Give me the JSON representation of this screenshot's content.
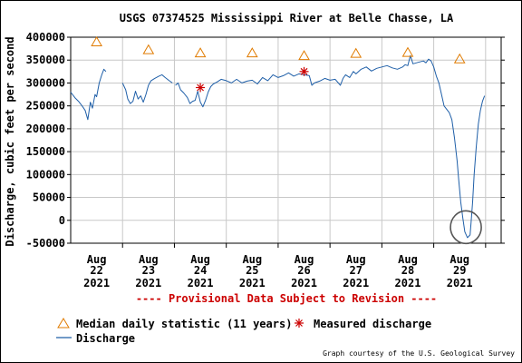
{
  "chart_data": {
    "type": "line",
    "title": "USGS 07374525 Mississippi River at Belle Chasse, LA",
    "ylabel": "Discharge, cubic feet per second",
    "ylim": [
      -50000,
      400000
    ],
    "yticks": [
      "400000",
      "350000",
      "300000",
      "250000",
      "200000",
      "150000",
      "100000",
      "50000",
      "0",
      "-50000"
    ],
    "ytick_values": [
      400000,
      350000,
      300000,
      250000,
      200000,
      150000,
      100000,
      50000,
      0,
      -50000
    ],
    "xlim": [
      0,
      8.3
    ],
    "xticks": [
      {
        "month": "Aug",
        "day": "22",
        "year": "2021",
        "value": 0.5
      },
      {
        "month": "Aug",
        "day": "23",
        "year": "2021",
        "value": 1.5
      },
      {
        "month": "Aug",
        "day": "24",
        "year": "2021",
        "value": 2.5
      },
      {
        "month": "Aug",
        "day": "25",
        "year": "2021",
        "value": 3.5
      },
      {
        "month": "Aug",
        "day": "26",
        "year": "2021",
        "value": 4.5
      },
      {
        "month": "Aug",
        "day": "27",
        "year": "2021",
        "value": 5.5
      },
      {
        "month": "Aug",
        "day": "28",
        "year": "2021",
        "value": 6.5
      },
      {
        "month": "Aug",
        "day": "29",
        "year": "2021",
        "value": 7.5
      }
    ],
    "day_boundaries": [
      1,
      2,
      3,
      4,
      5,
      6,
      7,
      8
    ],
    "grid": true,
    "provisional_note": "---- Provisional Data Subject to Revision ----",
    "credit": "Graph courtesy of the U.S. Geological Survey",
    "series": [
      {
        "name": "Discharge",
        "color": "#1f5fa8",
        "segments": [
          [
            [
              0.0,
              280000
            ],
            [
              0.08,
              268000
            ],
            [
              0.15,
              260000
            ],
            [
              0.22,
              250000
            ],
            [
              0.28,
              240000
            ],
            [
              0.33,
              220000
            ],
            [
              0.38,
              258000
            ],
            [
              0.42,
              245000
            ],
            [
              0.47,
              275000
            ],
            [
              0.5,
              270000
            ],
            [
              0.55,
              300000
            ],
            [
              0.6,
              318000
            ],
            [
              0.64,
              330000
            ],
            [
              0.68,
              325000
            ]
          ],
          [
            [
              1.0,
              300000
            ],
            [
              1.06,
              285000
            ],
            [
              1.1,
              265000
            ],
            [
              1.15,
              255000
            ],
            [
              1.2,
              260000
            ],
            [
              1.25,
              282000
            ],
            [
              1.3,
              265000
            ],
            [
              1.35,
              272000
            ],
            [
              1.4,
              258000
            ],
            [
              1.45,
              275000
            ],
            [
              1.5,
              295000
            ],
            [
              1.55,
              305000
            ],
            [
              1.62,
              310000
            ],
            [
              1.7,
              315000
            ],
            [
              1.76,
              318000
            ],
            [
              1.82,
              312000
            ],
            [
              1.9,
              305000
            ],
            [
              1.96,
              300000
            ]
          ],
          [
            [
              2.02,
              295000
            ],
            [
              2.07,
              300000
            ],
            [
              2.12,
              285000
            ],
            [
              2.18,
              278000
            ],
            [
              2.25,
              268000
            ],
            [
              2.3,
              255000
            ],
            [
              2.35,
              260000
            ],
            [
              2.4,
              262000
            ],
            [
              2.45,
              282000
            ],
            [
              2.5,
              258000
            ],
            [
              2.55,
              248000
            ],
            [
              2.6,
              262000
            ],
            [
              2.65,
              280000
            ],
            [
              2.7,
              292000
            ],
            [
              2.75,
              298000
            ],
            [
              2.82,
              302000
            ],
            [
              2.9,
              308000
            ],
            [
              3.0,
              305000
            ],
            [
              3.1,
              300000
            ],
            [
              3.2,
              308000
            ],
            [
              3.3,
              300000
            ],
            [
              3.4,
              304000
            ],
            [
              3.5,
              306000
            ],
            [
              3.6,
              298000
            ],
            [
              3.7,
              312000
            ],
            [
              3.8,
              305000
            ],
            [
              3.9,
              318000
            ],
            [
              4.0,
              312000
            ],
            [
              4.1,
              316000
            ],
            [
              4.2,
              322000
            ],
            [
              4.3,
              315000
            ],
            [
              4.4,
              320000
            ],
            [
              4.5,
              318000
            ],
            [
              4.6,
              316000
            ],
            [
              4.65,
              295000
            ],
            [
              4.7,
              300000
            ],
            [
              4.8,
              304000
            ],
            [
              4.9,
              310000
            ],
            [
              5.0,
              306000
            ],
            [
              5.1,
              308000
            ],
            [
              5.2,
              295000
            ],
            [
              5.25,
              310000
            ],
            [
              5.3,
              318000
            ],
            [
              5.38,
              312000
            ],
            [
              5.45,
              325000
            ],
            [
              5.5,
              320000
            ],
            [
              5.6,
              330000
            ],
            [
              5.7,
              335000
            ],
            [
              5.8,
              326000
            ],
            [
              5.9,
              332000
            ],
            [
              6.0,
              335000
            ],
            [
              6.1,
              338000
            ],
            [
              6.2,
              333000
            ],
            [
              6.3,
              330000
            ],
            [
              6.4,
              335000
            ],
            [
              6.45,
              340000
            ],
            [
              6.5,
              338000
            ],
            [
              6.55,
              360000
            ],
            [
              6.6,
              342000
            ],
            [
              6.7,
              345000
            ],
            [
              6.8,
              348000
            ],
            [
              6.85,
              344000
            ],
            [
              6.9,
              352000
            ],
            [
              6.95,
              348000
            ],
            [
              7.0,
              335000
            ],
            [
              7.05,
              315000
            ],
            [
              7.1,
              300000
            ],
            [
              7.15,
              275000
            ],
            [
              7.2,
              250000
            ],
            [
              7.3,
              235000
            ],
            [
              7.35,
              220000
            ],
            [
              7.4,
              180000
            ],
            [
              7.45,
              130000
            ],
            [
              7.48,
              90000
            ],
            [
              7.52,
              40000
            ],
            [
              7.56,
              5000
            ],
            [
              7.6,
              -25000
            ],
            [
              7.65,
              -38000
            ],
            [
              7.7,
              -32000
            ],
            [
              7.72,
              -5000
            ],
            [
              7.75,
              40000
            ],
            [
              7.78,
              100000
            ],
            [
              7.82,
              160000
            ],
            [
              7.86,
              210000
            ],
            [
              7.9,
              240000
            ],
            [
              7.94,
              260000
            ],
            [
              7.98,
              272000
            ]
          ]
        ]
      },
      {
        "name": "Median daily statistic (11 years)",
        "color": "#e07b00",
        "marker": "triangle",
        "x": [
          0.5,
          1.5,
          2.5,
          3.5,
          4.5,
          5.5,
          6.5,
          7.5
        ],
        "y": [
          390000,
          373000,
          366000,
          366000,
          360000,
          365000,
          367000,
          353000
        ]
      },
      {
        "name": "Measured discharge",
        "color": "#cc0000",
        "marker": "asterisk",
        "x": [
          2.5,
          4.5
        ],
        "y": [
          290000,
          325000
        ]
      }
    ],
    "legend": {
      "median_label": "Median daily statistic (11 years)",
      "measured_label": "Measured discharge",
      "discharge_label": "Discharge"
    },
    "annotation": {
      "type": "circle",
      "x": 7.62,
      "y": -15000
    }
  }
}
